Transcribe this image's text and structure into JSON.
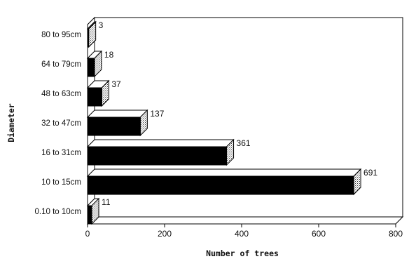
{
  "chart_data": {
    "type": "bar",
    "orientation": "horizontal",
    "style": "3d",
    "categories": [
      "0.10 to 10cm",
      "10 to 15cm",
      "16 to 31cm",
      "32 to 47cm",
      "48 to 63cm",
      "64 to 79cm",
      "80 to 95cm"
    ],
    "values": [
      11,
      691,
      361,
      137,
      37,
      18,
      3
    ],
    "data_labels": [
      "11",
      "691",
      "361",
      "137",
      "37",
      "18",
      "3"
    ],
    "xlabel": "Number of trees",
    "ylabel": "Diameter",
    "xlim": [
      0,
      800
    ],
    "x_ticks": [
      "0",
      "200",
      "400",
      "600",
      "800"
    ],
    "grid": false,
    "bar_color": "#000000"
  }
}
